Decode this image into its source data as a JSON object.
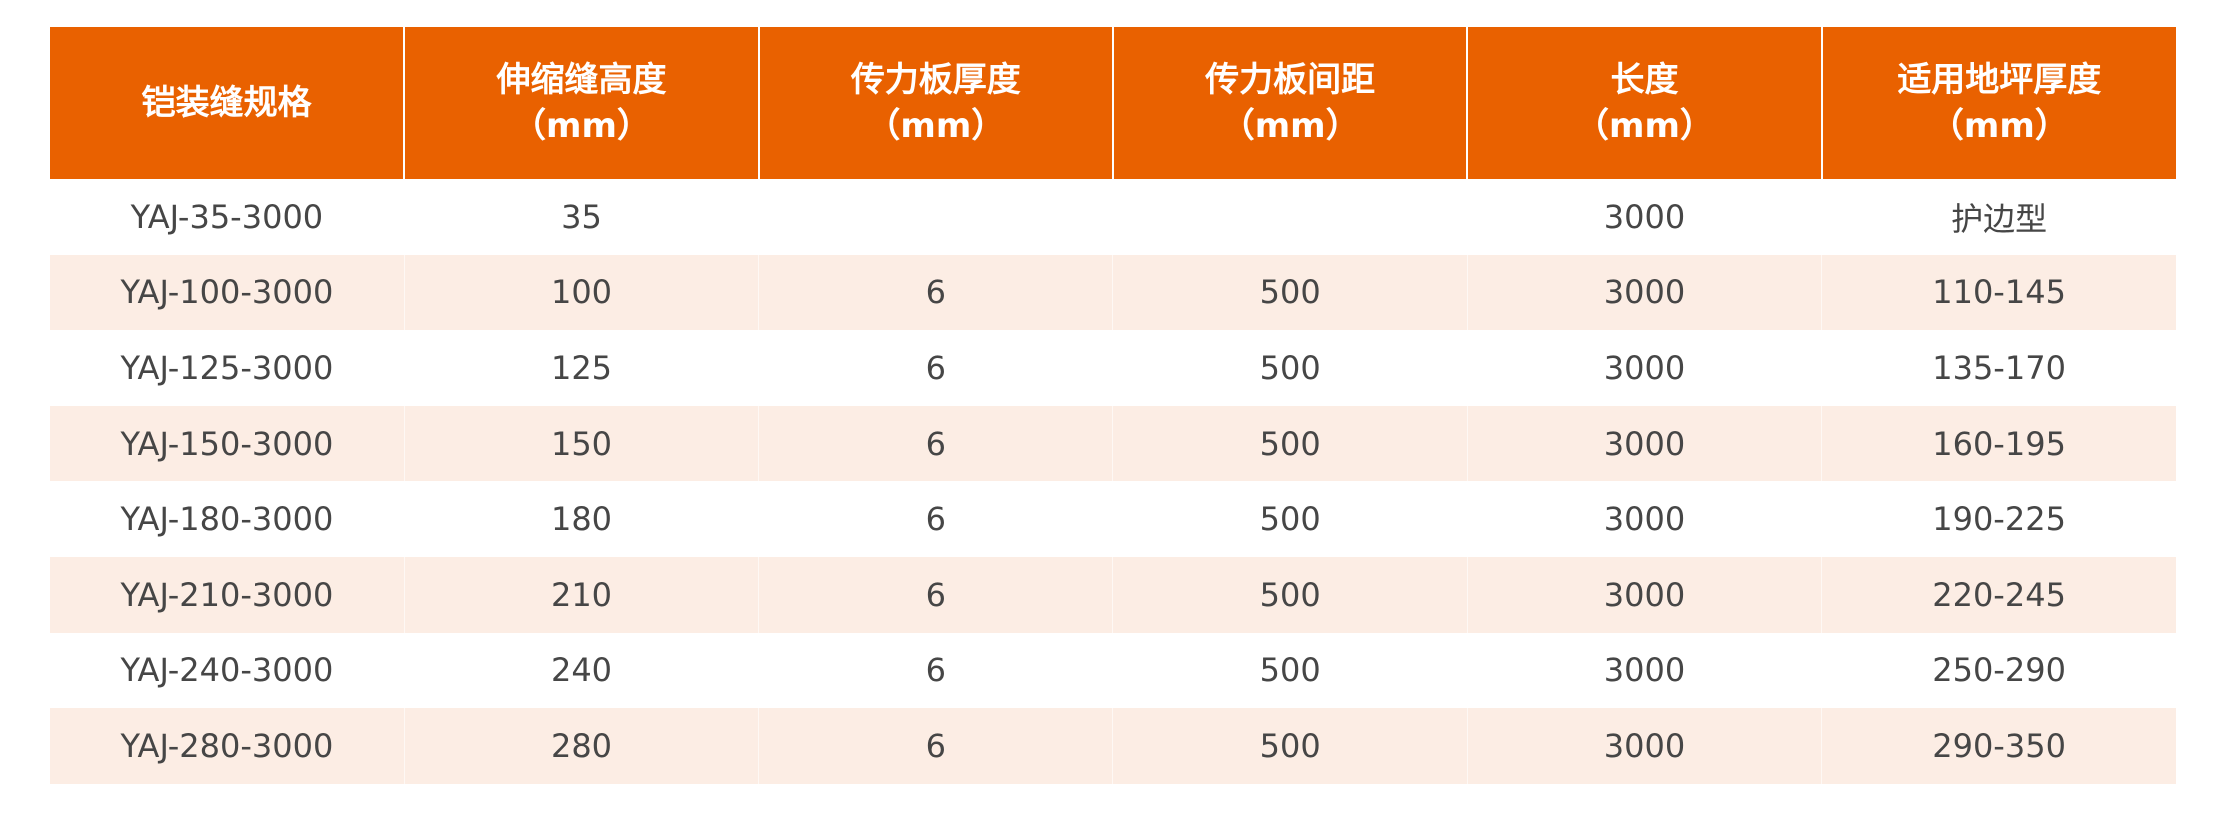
{
  "colors": {
    "header_bg": "#E96100",
    "stripe_bg": "#FCEDE4",
    "text": "#464646"
  },
  "headers": [
    {
      "line1": "铠装缝规格",
      "line2": ""
    },
    {
      "line1": "伸缩缝高度",
      "line2": "（mm）"
    },
    {
      "line1": "传力板厚度",
      "line2": "（mm）"
    },
    {
      "line1": "传力板间距",
      "line2": "（mm）"
    },
    {
      "line1": "长度",
      "line2": "（mm）"
    },
    {
      "line1": "适用地坪厚度",
      "line2": "（mm）"
    }
  ],
  "rows": [
    [
      "YAJ-35-3000",
      "35",
      "",
      "",
      "3000",
      "护边型"
    ],
    [
      "YAJ-100-3000",
      "100",
      "6",
      "500",
      "3000",
      "110-145"
    ],
    [
      "YAJ-125-3000",
      "125",
      "6",
      "500",
      "3000",
      "135-170"
    ],
    [
      "YAJ-150-3000",
      "150",
      "6",
      "500",
      "3000",
      "160-195"
    ],
    [
      "YAJ-180-3000",
      "180",
      "6",
      "500",
      "3000",
      "190-225"
    ],
    [
      "YAJ-210-3000",
      "210",
      "6",
      "500",
      "3000",
      "220-245"
    ],
    [
      "YAJ-240-3000",
      "240",
      "6",
      "500",
      "3000",
      "250-290"
    ],
    [
      "YAJ-280-3000",
      "280",
      "6",
      "500",
      "3000",
      "290-350"
    ]
  ]
}
